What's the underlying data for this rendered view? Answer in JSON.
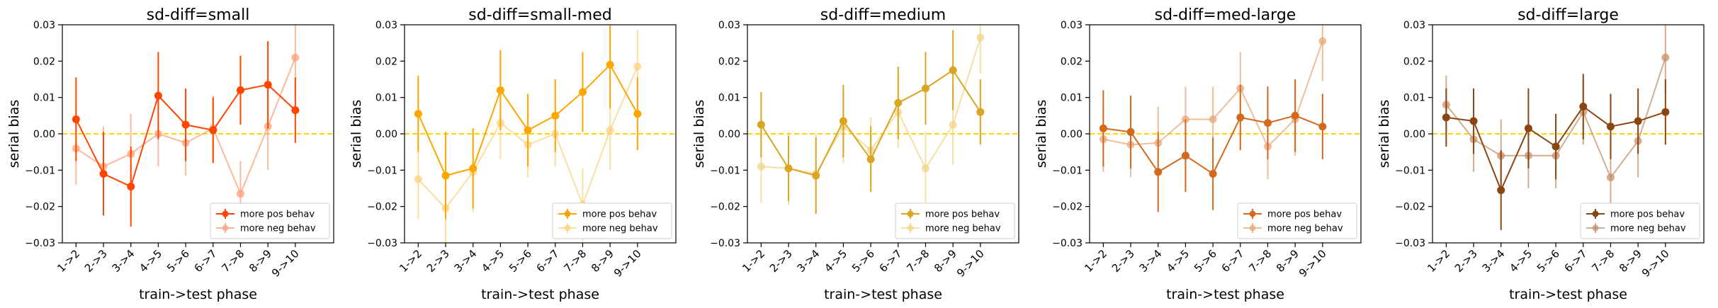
{
  "figure": {
    "xlabel": "train->test phase",
    "ylabel": "serial bias",
    "legend_labels": [
      "more pos behav",
      "more neg behav"
    ],
    "zero_line_color": "#FFD700"
  },
  "chart_data": [
    {
      "type": "line",
      "title": "sd-diff=small",
      "xlabel": "train->test phase",
      "ylabel": "serial bias",
      "categories": [
        "1->2",
        "2->3",
        "3->4",
        "4->5",
        "5->6",
        "6->7",
        "7->8",
        "8->9",
        "9->10"
      ],
      "yticks": [
        "0.03",
        "0.02",
        "0.01",
        "0.00",
        "−0.01",
        "−0.02",
        "−0.03"
      ],
      "ylim": [
        -0.03,
        0.03
      ],
      "legend_position": "lower right",
      "grid": false,
      "series": [
        {
          "name": "more pos behav",
          "color": "#FF4500",
          "values": [
            0.004,
            -0.011,
            -0.0145,
            0.0105,
            0.0025,
            0.001,
            0.012,
            0.0135,
            0.0065
          ],
          "errors": [
            0.0115,
            0.0115,
            0.011,
            0.012,
            0.01,
            0.009,
            0.0095,
            0.012,
            0.009
          ]
        },
        {
          "name": "more neg behav",
          "color": "#FFA07A",
          "values": [
            -0.004,
            -0.009,
            -0.0055,
            0.0,
            -0.0025,
            0.0015,
            -0.0165,
            0.002,
            0.021
          ],
          "errors": [
            0.01,
            0.011,
            0.011,
            0.009,
            0.009,
            0.009,
            0.009,
            0.012,
            0.011
          ]
        }
      ]
    },
    {
      "type": "line",
      "title": "sd-diff=small-med",
      "xlabel": "train->test phase",
      "ylabel": "serial bias",
      "categories": [
        "1->2",
        "2->3",
        "3->4",
        "4->5",
        "5->6",
        "6->7",
        "7->8",
        "8->9",
        "9->10"
      ],
      "yticks": [
        "0.03",
        "0.02",
        "0.01",
        "0.00",
        "−0.01",
        "−0.02",
        "−0.03"
      ],
      "ylim": [
        -0.03,
        0.03
      ],
      "legend_position": "lower right",
      "grid": false,
      "series": [
        {
          "name": "more pos behav",
          "color": "#FFA500",
          "values": [
            0.0055,
            -0.0115,
            -0.0095,
            0.012,
            0.001,
            0.005,
            0.0115,
            0.019,
            0.0055
          ],
          "errors": [
            0.0105,
            0.012,
            0.011,
            0.011,
            0.01,
            0.01,
            0.011,
            0.012,
            0.01
          ]
        },
        {
          "name": "more neg behav",
          "color": "#FFD27F",
          "values": [
            -0.0125,
            -0.0205,
            -0.0105,
            0.003,
            -0.003,
            0.0,
            -0.0195,
            0.001,
            0.0185
          ],
          "errors": [
            0.011,
            0.01,
            0.011,
            0.01,
            0.009,
            0.009,
            0.01,
            0.011,
            0.01
          ]
        }
      ]
    },
    {
      "type": "line",
      "title": "sd-diff=medium",
      "xlabel": "train->test phase",
      "ylabel": "serial bias",
      "categories": [
        "1->2",
        "2->3",
        "3->4",
        "4->5",
        "5->6",
        "6->7",
        "7->8",
        "8->9",
        "9->10"
      ],
      "yticks": [
        "0.03",
        "0.02",
        "0.01",
        "0.00",
        "−0.01",
        "−0.02",
        "−0.03"
      ],
      "ylim": [
        -0.03,
        0.03
      ],
      "legend_position": "lower right",
      "grid": false,
      "series": [
        {
          "name": "more pos behav",
          "color": "#DAA520",
          "values": [
            0.0025,
            -0.0095,
            -0.0115,
            0.0035,
            -0.007,
            0.0085,
            0.0125,
            0.0175,
            0.006
          ],
          "errors": [
            0.009,
            0.009,
            0.0105,
            0.01,
            0.009,
            0.01,
            0.01,
            0.011,
            0.009
          ]
        },
        {
          "name": "more neg behav",
          "color": "#F0D68A",
          "values": [
            -0.009,
            -0.0095,
            -0.011,
            0.002,
            -0.0045,
            0.006,
            -0.0095,
            0.0025,
            0.0265
          ],
          "errors": [
            0.01,
            0.01,
            0.011,
            0.01,
            0.009,
            0.01,
            0.01,
            0.011,
            0.01
          ]
        }
      ]
    },
    {
      "type": "line",
      "title": "sd-diff=med-large",
      "xlabel": "train->test phase",
      "ylabel": "serial bias",
      "categories": [
        "1->2",
        "2->3",
        "3->4",
        "4->5",
        "5->6",
        "6->7",
        "7->8",
        "8->9",
        "9->10"
      ],
      "yticks": [
        "0.03",
        "0.02",
        "0.01",
        "0.00",
        "−0.01",
        "−0.02",
        "−0.03"
      ],
      "ylim": [
        -0.03,
        0.03
      ],
      "legend_position": "lower right",
      "grid": false,
      "series": [
        {
          "name": "more pos behav",
          "color": "#D2691E",
          "values": [
            0.0015,
            0.0005,
            -0.0105,
            -0.006,
            -0.011,
            0.0045,
            0.003,
            0.005,
            0.002
          ],
          "errors": [
            0.0105,
            0.01,
            0.011,
            0.01,
            0.01,
            0.009,
            0.01,
            0.01,
            0.009
          ]
        },
        {
          "name": "more neg behav",
          "color": "#E8A878",
          "values": [
            -0.0015,
            -0.003,
            -0.0025,
            0.004,
            0.004,
            0.0125,
            -0.0035,
            0.004,
            0.0255
          ],
          "errors": [
            0.009,
            0.009,
            0.01,
            0.009,
            0.009,
            0.01,
            0.009,
            0.01,
            0.011
          ]
        }
      ]
    },
    {
      "type": "line",
      "title": "sd-diff=large",
      "xlabel": "train->test phase",
      "ylabel": "serial bias",
      "categories": [
        "1->2",
        "2->3",
        "3->4",
        "4->5",
        "5->6",
        "6->7",
        "7->8",
        "8->9",
        "9->10"
      ],
      "yticks": [
        "0.03",
        "0.02",
        "0.01",
        "0.00",
        "−0.01",
        "−0.02",
        "−0.03"
      ],
      "ylim": [
        -0.03,
        0.03
      ],
      "legend_position": "lower right",
      "grid": false,
      "series": [
        {
          "name": "more pos behav",
          "color": "#8B4513",
          "values": [
            0.0045,
            0.0035,
            -0.0155,
            0.0015,
            -0.0035,
            0.0075,
            0.002,
            0.0035,
            0.006
          ],
          "errors": [
            0.008,
            0.009,
            0.011,
            0.011,
            0.009,
            0.009,
            0.009,
            0.009,
            0.009
          ]
        },
        {
          "name": "more neg behav",
          "color": "#C8906A",
          "values": [
            0.008,
            -0.0015,
            -0.006,
            -0.006,
            -0.006,
            0.006,
            -0.012,
            -0.002,
            0.021
          ],
          "errors": [
            0.008,
            0.009,
            0.01,
            0.009,
            0.009,
            0.009,
            0.01,
            0.01,
            0.01
          ]
        }
      ]
    }
  ]
}
